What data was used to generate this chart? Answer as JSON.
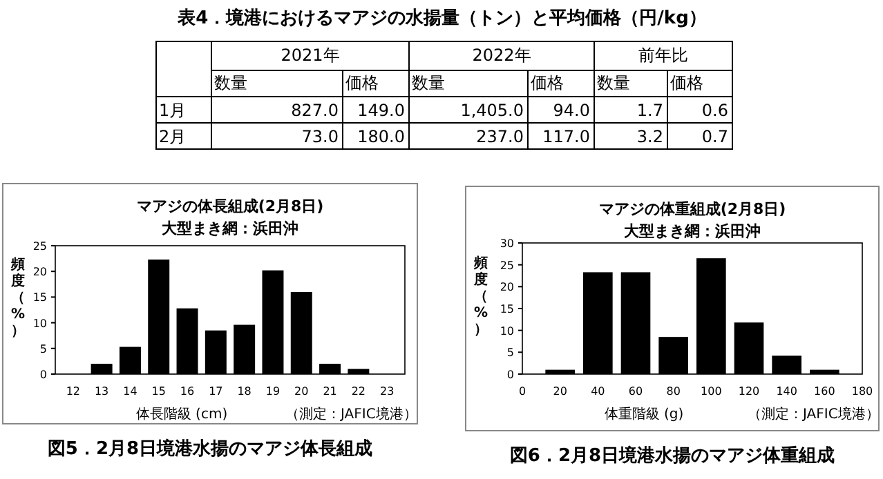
{
  "chart_data": [
    {
      "type": "other",
      "title": "表4．境港におけるマアジの水揚量（トン）と平均価格（円/kg）",
      "annotations": [
        "2021年",
        "2022年",
        "前年比",
        "数量",
        "価格",
        "数量",
        "価格",
        "数量",
        "価格",
        "1月",
        "827.0",
        "149.0",
        "1,405.0",
        "94.0",
        "1.7",
        "0.6",
        "2月",
        "73.0",
        "180.0",
        "237.0",
        "117.0",
        "3.2",
        "0.7"
      ]
    },
    {
      "type": "bar",
      "title": "マアジの体長組成(2月8日)",
      "subtitle": "大型まき網：浜田沖",
      "xlabel": "体長階級 (cm)",
      "ylabel": "頻度（%）",
      "categories": [
        "12",
        "13",
        "14",
        "15",
        "16",
        "17",
        "18",
        "19",
        "20",
        "21",
        "22",
        "23"
      ],
      "values": [
        0,
        2,
        5.3,
        22.3,
        12.8,
        8.5,
        9.6,
        20.2,
        16,
        2,
        1,
        0
      ],
      "color": "#000000",
      "ylim": [
        0,
        25
      ],
      "yticks": [
        0,
        5,
        10,
        15,
        20,
        25
      ],
      "grid": false,
      "annotations": [
        "（測定：JAFIC境港）",
        "図5．2月8日境港水揚のマアジ体長組成"
      ]
    },
    {
      "type": "bar",
      "title": "マアジの体重組成(2月8日)",
      "subtitle": "大型まき網：浜田沖",
      "xlabel": "体重階級 (g)",
      "ylabel": "頻度（%）",
      "x": [
        20,
        40,
        60,
        80,
        100,
        120,
        140,
        160
      ],
      "values": [
        1,
        23.3,
        23.3,
        8.5,
        26.5,
        11.8,
        4.2,
        1
      ],
      "color": "#000000",
      "xlim": [
        0,
        180
      ],
      "xticks": [
        0,
        20,
        40,
        60,
        80,
        100,
        120,
        140,
        160,
        180
      ],
      "ylim": [
        0,
        30
      ],
      "yticks": [
        0,
        5,
        10,
        15,
        20,
        25,
        30
      ],
      "grid": false,
      "annotations": [
        "（測定：JAFIC境港）",
        "図6．2月8日境港水揚のマアジ体重組成"
      ]
    }
  ]
}
